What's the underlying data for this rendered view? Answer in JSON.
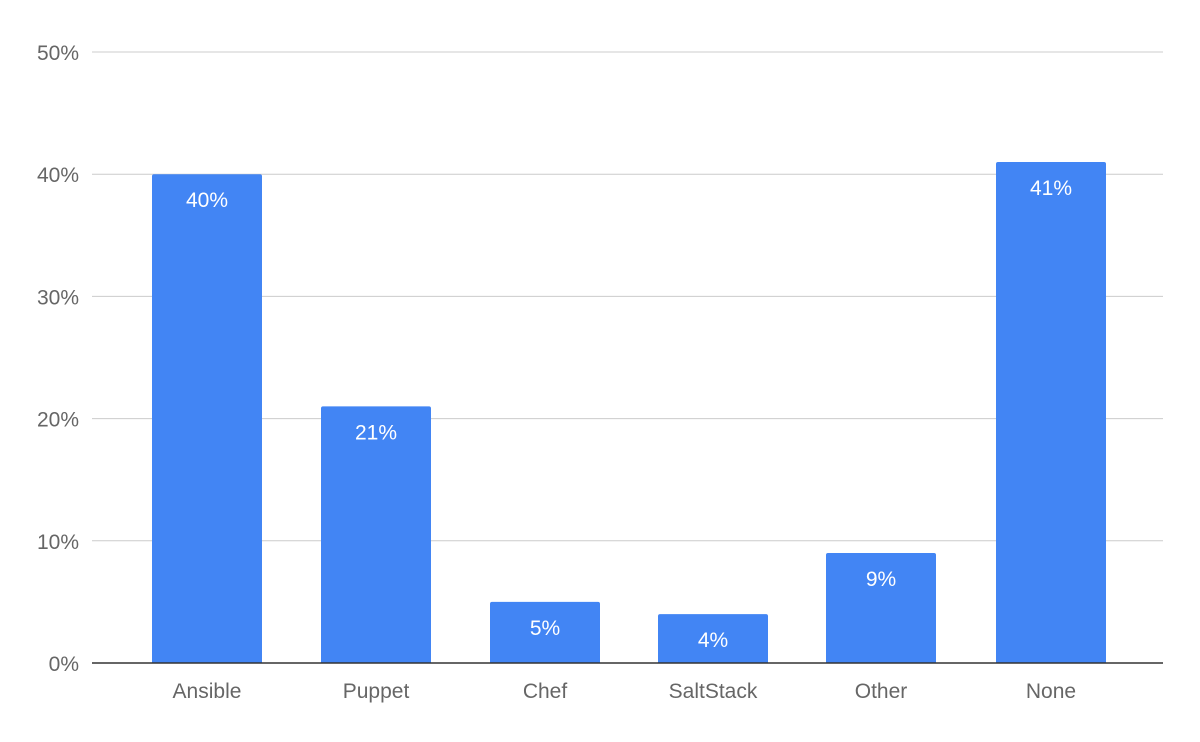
{
  "chart_data": {
    "type": "bar",
    "categories": [
      "Ansible",
      "Puppet",
      "Chef",
      "SaltStack",
      "Other",
      "None"
    ],
    "values": [
      40,
      21,
      5,
      4,
      9,
      41
    ],
    "data_labels": [
      "40%",
      "21%",
      "5%",
      "4%",
      "9%",
      "41%"
    ],
    "y_ticks": [
      0,
      10,
      20,
      30,
      40,
      50
    ],
    "y_tick_labels": [
      "0%",
      "10%",
      "20%",
      "30%",
      "40%",
      "50%"
    ],
    "ylim": [
      0,
      50
    ],
    "grid": true,
    "legend": "none",
    "title": "",
    "xlabel": "",
    "ylabel": "",
    "colors": {
      "bar": "#4285f4",
      "grid": "#cccccc",
      "axis": "#333333",
      "tick_text": "#666666",
      "bar_text": "#ffffff"
    }
  }
}
